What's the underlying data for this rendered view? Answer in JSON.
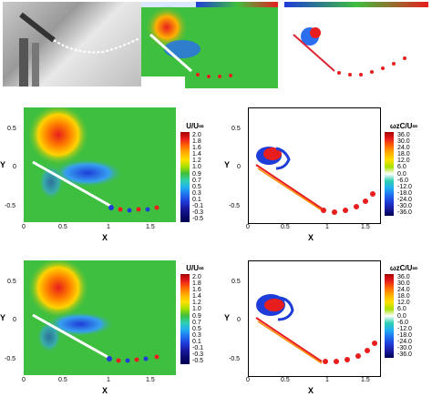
{
  "top_row": {
    "photo_icon": "flow-visualization-photo",
    "panel_b_icon": "velocity-contour-small",
    "panel_c_icon": "vorticity-contour-small"
  },
  "middle_row": {
    "left": {
      "ylabel": "Y",
      "xlabel": "X",
      "yticks": [
        "0.5",
        "0",
        "-0.5"
      ],
      "xticks": [
        "0",
        "0.5",
        "1",
        "1.5"
      ],
      "colorbar_title": "U/U∞",
      "colorbar_labels": [
        "2.0",
        "1.8",
        "1.6",
        "1.4",
        "1.2",
        "1.0",
        "0.9",
        "0.7",
        "0.5",
        "0.3",
        "0.1",
        "-0.1",
        "-0.3",
        "-0.5"
      ]
    },
    "right": {
      "ylabel": "Y",
      "xlabel": "X",
      "yticks": [
        "0.5",
        "0",
        "-0.5"
      ],
      "xticks": [
        "0",
        "0.5",
        "1",
        "1.5"
      ],
      "colorbar_title": "ωzC/U∞",
      "colorbar_labels": [
        "36.0",
        "30.0",
        "24.0",
        "18.0",
        "12.0",
        "6.0",
        "0.0",
        "-6.0",
        "-12.0",
        "-18.0",
        "-24.0",
        "-30.0",
        "-36.0"
      ]
    }
  },
  "bottom_row": {
    "left": {
      "ylabel": "Y",
      "xlabel": "X",
      "yticks": [
        "0.5",
        "0",
        "-0.5"
      ],
      "xticks": [
        "0",
        "0.5",
        "1",
        "1.5"
      ],
      "colorbar_title": "U/U∞",
      "colorbar_labels": [
        "2.0",
        "1.8",
        "1.6",
        "1.4",
        "1.2",
        "1.0",
        "0.9",
        "0.7",
        "0.5",
        "0.3",
        "0.1",
        "-0.1",
        "-0.3",
        "-0.5"
      ]
    },
    "right": {
      "ylabel": "Y",
      "xlabel": "X",
      "yticks": [
        "0.5",
        "0",
        "-0.5"
      ],
      "xticks": [
        "0",
        "0.5",
        "1",
        "1.5"
      ],
      "colorbar_title": "ωzC/U∞",
      "colorbar_labels": [
        "36.0",
        "30.0",
        "24.0",
        "18.0",
        "12.0",
        "6.0",
        "0.0",
        "-6.0",
        "-12.0",
        "-18.0",
        "-24.0",
        "-30.0",
        "-36.0"
      ]
    }
  },
  "colors": {
    "field_bg": "#3fbf3f",
    "high": "#e81e1e",
    "low": "#1e3cd8",
    "neutral_white": "#ffffff"
  }
}
